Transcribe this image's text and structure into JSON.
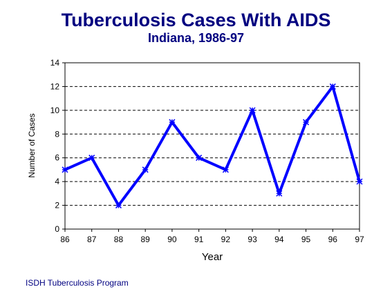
{
  "chart_data": {
    "type": "line",
    "title": "Tuberculosis Cases With AIDS",
    "subtitle": "Indiana, 1986-97",
    "xlabel": "Year",
    "ylabel": "Number of Cases",
    "categories": [
      "86",
      "87",
      "88",
      "89",
      "90",
      "91",
      "92",
      "93",
      "94",
      "95",
      "96",
      "97"
    ],
    "series": [
      {
        "values": [
          5,
          6,
          2,
          5,
          9,
          6,
          5,
          10,
          3,
          9,
          12,
          4
        ],
        "color": "#0000ff"
      }
    ],
    "ylim": [
      0,
      14
    ],
    "yticks": [
      0,
      2,
      4,
      6,
      8,
      10,
      12,
      14
    ],
    "grid": "dashed horizontal"
  },
  "footer": {
    "source": "ISDH Tuberculosis Program"
  },
  "colors": {
    "title": "#000080",
    "line": "#0000ff",
    "footer": "#000080"
  }
}
